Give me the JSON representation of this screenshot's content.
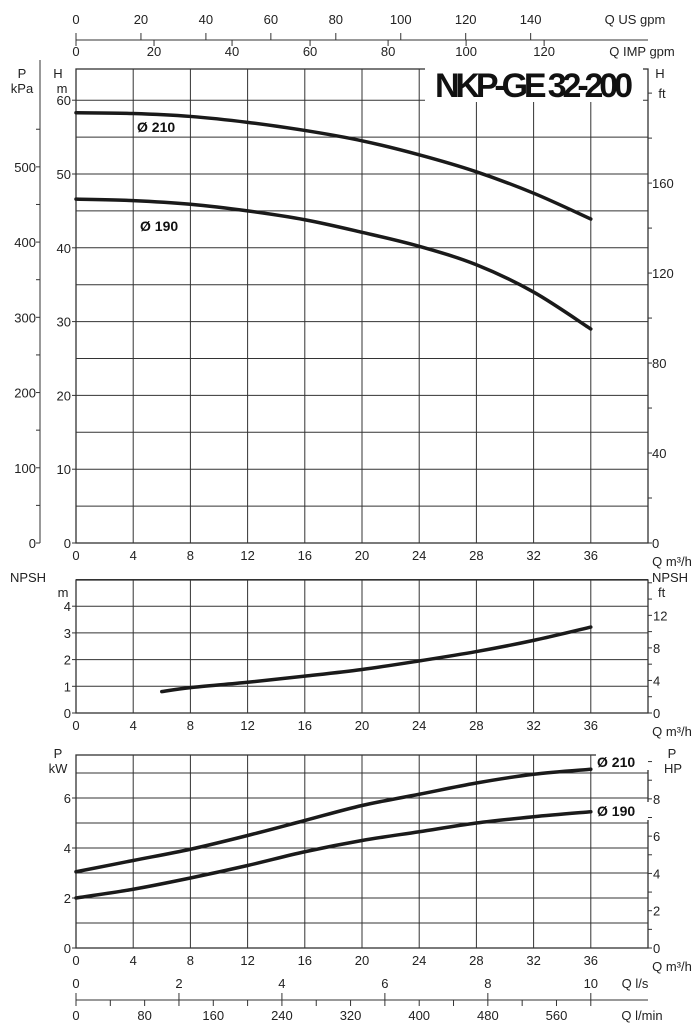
{
  "chart_data": [
    {
      "type": "line",
      "title": "NKP-GE 32-200",
      "xlabel": "Q m³/h",
      "ylabel": "H m",
      "ylabel_left_outer": "P kPa",
      "ylabel_right": "H ft",
      "xlim": [
        0,
        40
      ],
      "ylim": [
        0,
        64
      ],
      "grid": true,
      "x_ticks": [
        0,
        4,
        8,
        12,
        16,
        20,
        24,
        28,
        32,
        36
      ],
      "y_ticks": [
        0,
        10,
        20,
        30,
        40,
        50,
        60
      ],
      "kpa_ticks": [
        0,
        100,
        200,
        300,
        400,
        500
      ],
      "ft_ticks": [
        0,
        40,
        80,
        120,
        160
      ],
      "top_axes": [
        {
          "label": "Q US gpm",
          "ticks": [
            0,
            20,
            40,
            60,
            80,
            100,
            120,
            140
          ]
        },
        {
          "label": "Q IMP gpm",
          "ticks": [
            0,
            20,
            40,
            60,
            80,
            100,
            120
          ]
        }
      ],
      "series": [
        {
          "name": "Ø 210",
          "x": [
            0,
            4,
            8,
            12,
            16,
            20,
            24,
            28,
            32,
            36
          ],
          "y": [
            58.3,
            58.2,
            57.8,
            57.0,
            55.9,
            54.5,
            52.6,
            50.3,
            47.4,
            43.9
          ]
        },
        {
          "name": "Ø 190",
          "x": [
            0,
            4,
            8,
            12,
            16,
            20,
            24,
            28,
            32,
            36
          ],
          "y": [
            46.6,
            46.4,
            45.9,
            45.0,
            43.8,
            42.1,
            40.2,
            37.7,
            34.0,
            29.0
          ]
        }
      ]
    },
    {
      "type": "line",
      "xlabel": "Q m³/h",
      "ylabel": "NPSH m",
      "ylabel_right": "NPSH ft",
      "xlim": [
        0,
        40
      ],
      "ylim": [
        0,
        5
      ],
      "grid": true,
      "x_ticks": [
        0,
        4,
        8,
        12,
        16,
        20,
        24,
        28,
        32,
        36
      ],
      "y_ticks": [
        0,
        1,
        2,
        3,
        4
      ],
      "ft_ticks": [
        0,
        4,
        8,
        12
      ],
      "series": [
        {
          "name": "NPSH",
          "x": [
            6,
            8,
            12,
            16,
            20,
            24,
            28,
            32,
            36
          ],
          "y": [
            0.8,
            0.95,
            1.15,
            1.38,
            1.63,
            1.95,
            2.3,
            2.72,
            3.22
          ]
        }
      ]
    },
    {
      "type": "line",
      "xlabel": "Q m³/h",
      "ylabel": "P kW",
      "ylabel_right": "P HP",
      "xlim": [
        0,
        40
      ],
      "ylim": [
        0,
        7.7
      ],
      "grid": true,
      "x_ticks": [
        0,
        4,
        8,
        12,
        16,
        20,
        24,
        28,
        32,
        36
      ],
      "y_ticks": [
        0,
        2,
        4,
        6
      ],
      "hp_ticks": [
        0,
        2,
        4,
        6,
        8
      ],
      "bottom_axes": [
        {
          "label": "Q l/s",
          "ticks": [
            0,
            2,
            4,
            6,
            8,
            10
          ]
        },
        {
          "label": "Q l/min",
          "ticks": [
            0,
            80,
            160,
            240,
            320,
            400,
            480,
            560
          ]
        }
      ],
      "series": [
        {
          "name": "Ø 210",
          "x": [
            0,
            4,
            8,
            12,
            16,
            20,
            24,
            28,
            32,
            36
          ],
          "y": [
            3.05,
            3.5,
            3.95,
            4.5,
            5.1,
            5.7,
            6.15,
            6.6,
            6.95,
            7.15
          ]
        },
        {
          "name": "Ø 190",
          "x": [
            0,
            4,
            8,
            12,
            16,
            20,
            24,
            28,
            32,
            36
          ],
          "y": [
            2.0,
            2.35,
            2.8,
            3.3,
            3.85,
            4.3,
            4.65,
            5.0,
            5.25,
            5.45
          ]
        }
      ]
    }
  ],
  "colors": {
    "curve": "#1a1a1a",
    "grid": "#333333"
  }
}
